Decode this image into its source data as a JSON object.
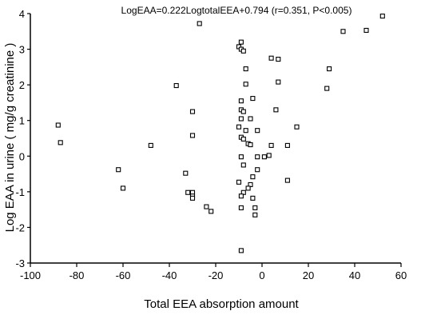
{
  "chart_data": {
    "type": "scatter",
    "title": "LogEAA=0.222LogtotalEEA+0.794 (r=0.351, P<0.005)",
    "xlabel": "Total EEA absorption amount",
    "ylabel": "Log EAA in urine ( mg/g creatinine )",
    "xlim": [
      -100,
      60
    ],
    "ylim": [
      -3,
      4
    ],
    "xticks": [
      -100,
      -80,
      -60,
      -40,
      -20,
      0,
      20,
      40,
      60
    ],
    "yticks": [
      -3,
      -2,
      -1,
      0,
      1,
      2,
      3,
      4
    ],
    "grid": false,
    "marker": "open-square",
    "series": [
      {
        "points": [
          [
            52,
            3.93
          ],
          [
            45,
            3.53
          ],
          [
            35,
            3.5
          ],
          [
            -27,
            3.72
          ],
          [
            -9,
            3.2
          ],
          [
            -10,
            3.07
          ],
          [
            -9,
            3.0
          ],
          [
            -8,
            2.95
          ],
          [
            4,
            2.75
          ],
          [
            7,
            2.72
          ],
          [
            -7,
            2.45
          ],
          [
            29,
            2.45
          ],
          [
            -37,
            1.98
          ],
          [
            -7,
            2.02
          ],
          [
            7,
            2.08
          ],
          [
            28,
            1.9
          ],
          [
            -9,
            1.55
          ],
          [
            -4,
            1.62
          ],
          [
            -9,
            1.3
          ],
          [
            -30,
            1.25
          ],
          [
            6,
            1.3
          ],
          [
            -8,
            1.25
          ],
          [
            -9,
            1.05
          ],
          [
            -5,
            1.05
          ],
          [
            -88,
            0.87
          ],
          [
            -10,
            0.82
          ],
          [
            -2,
            0.72
          ],
          [
            15,
            0.82
          ],
          [
            -7,
            0.72
          ],
          [
            -30,
            0.58
          ],
          [
            -9,
            0.53
          ],
          [
            -8,
            0.48
          ],
          [
            -87,
            0.38
          ],
          [
            -48,
            0.3
          ],
          [
            -6,
            0.35
          ],
          [
            -5,
            0.32
          ],
          [
            4,
            0.3
          ],
          [
            11,
            0.3
          ],
          [
            -9,
            -0.02
          ],
          [
            1,
            -0.02
          ],
          [
            3,
            0.02
          ],
          [
            -2,
            -0.02
          ],
          [
            -8,
            -0.25
          ],
          [
            -2,
            -0.38
          ],
          [
            -62,
            -0.38
          ],
          [
            -33,
            -0.48
          ],
          [
            -4,
            -0.58
          ],
          [
            11,
            -0.68
          ],
          [
            -10,
            -0.73
          ],
          [
            -5,
            -0.8
          ],
          [
            -6,
            -0.9
          ],
          [
            -60,
            -0.9
          ],
          [
            -32,
            -1.02
          ],
          [
            -30,
            -1.02
          ],
          [
            -8,
            -1.02
          ],
          [
            -30,
            -1.12
          ],
          [
            -9,
            -1.12
          ],
          [
            -30,
            -1.18
          ],
          [
            -4,
            -1.18
          ],
          [
            -24,
            -1.42
          ],
          [
            -9,
            -1.45
          ],
          [
            -3,
            -1.45
          ],
          [
            -22,
            -1.55
          ],
          [
            -3,
            -1.65
          ],
          [
            -9,
            -2.65
          ]
        ]
      }
    ]
  }
}
